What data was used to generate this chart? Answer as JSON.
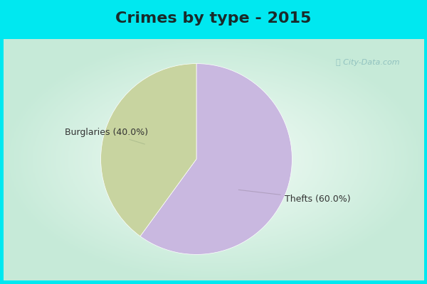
{
  "title": "Crimes by type - 2015",
  "slices": [
    {
      "label": "Thefts",
      "value": 60.0,
      "color": "#c9b8e0"
    },
    {
      "label": "Burglaries",
      "value": 40.0,
      "color": "#c8d4a0"
    }
  ],
  "cyan_border": "#00e8f0",
  "bg_gradient_center": "#f5fdf8",
  "bg_gradient_edge": "#c8ead8",
  "title_fontsize": 16,
  "label_fontsize": 9,
  "watermark": "ⓘ City-Data.com",
  "title_color": "#1a2a2a"
}
